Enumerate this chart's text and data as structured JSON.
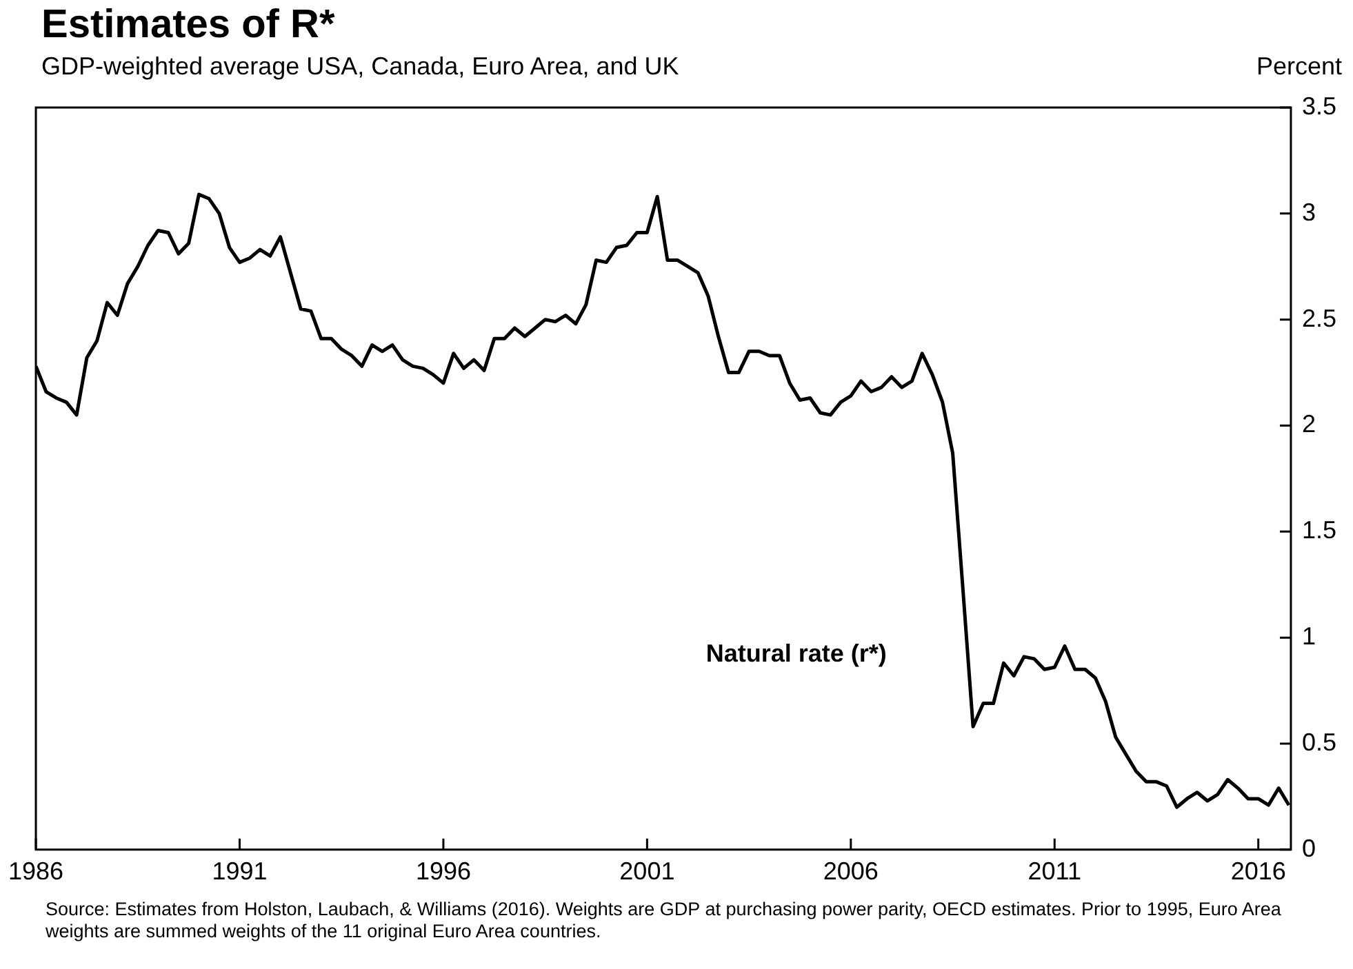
{
  "chart_data": {
    "type": "line",
    "title": "Estimates of R*",
    "subtitle": "GDP-weighted average USA, Canada, Euro Area, and UK",
    "ylabel": "Percent",
    "x": [
      1986,
      1986.25,
      1986.5,
      1986.75,
      1987,
      1987.25,
      1987.5,
      1987.75,
      1988,
      1988.25,
      1988.5,
      1988.75,
      1989,
      1989.25,
      1989.5,
      1989.75,
      1990,
      1990.25,
      1990.5,
      1990.75,
      1991,
      1991.25,
      1991.5,
      1991.75,
      1992,
      1992.25,
      1992.5,
      1992.75,
      1993,
      1993.25,
      1993.5,
      1993.75,
      1994,
      1994.25,
      1994.5,
      1994.75,
      1995,
      1995.25,
      1995.5,
      1995.75,
      1996,
      1996.25,
      1996.5,
      1996.75,
      1997,
      1997.25,
      1997.5,
      1997.75,
      1998,
      1998.25,
      1998.5,
      1998.75,
      1999,
      1999.25,
      1999.5,
      1999.75,
      2000,
      2000.25,
      2000.5,
      2000.75,
      2001,
      2001.25,
      2001.5,
      2001.75,
      2002,
      2002.25,
      2002.5,
      2002.75,
      2003,
      2003.25,
      2003.5,
      2003.75,
      2004,
      2004.25,
      2004.5,
      2004.75,
      2005,
      2005.25,
      2005.5,
      2005.75,
      2006,
      2006.25,
      2006.5,
      2006.75,
      2007,
      2007.25,
      2007.5,
      2007.75,
      2008,
      2008.25,
      2008.5,
      2008.75,
      2009,
      2009.25,
      2009.5,
      2009.75,
      2010,
      2010.25,
      2010.5,
      2010.75,
      2011,
      2011.25,
      2011.5,
      2011.75,
      2012,
      2012.25,
      2012.5,
      2012.75,
      2013,
      2013.25,
      2013.5,
      2013.75,
      2014,
      2014.25,
      2014.5,
      2014.75,
      2015,
      2015.25,
      2015.5,
      2015.75,
      2016,
      2016.25,
      2016.5,
      2016.75
    ],
    "series": [
      {
        "name": "Natural rate (r*)",
        "color": "#000000",
        "values": [
          2.28,
          2.16,
          2.13,
          2.11,
          2.05,
          2.32,
          2.4,
          2.58,
          2.52,
          2.67,
          2.75,
          2.85,
          2.92,
          2.91,
          2.81,
          2.86,
          3.09,
          3.07,
          3.0,
          2.84,
          2.77,
          2.79,
          2.83,
          2.8,
          2.89,
          2.72,
          2.55,
          2.54,
          2.41,
          2.41,
          2.36,
          2.33,
          2.28,
          2.38,
          2.35,
          2.38,
          2.31,
          2.28,
          2.27,
          2.24,
          2.2,
          2.34,
          2.27,
          2.31,
          2.26,
          2.41,
          2.41,
          2.46,
          2.42,
          2.46,
          2.5,
          2.49,
          2.52,
          2.48,
          2.57,
          2.78,
          2.77,
          2.84,
          2.85,
          2.91,
          2.91,
          3.08,
          2.78,
          2.78,
          2.75,
          2.72,
          2.61,
          2.42,
          2.25,
          2.25,
          2.35,
          2.35,
          2.33,
          2.33,
          2.2,
          2.12,
          2.13,
          2.06,
          2.05,
          2.11,
          2.14,
          2.21,
          2.16,
          2.18,
          2.23,
          2.18,
          2.21,
          2.34,
          2.24,
          2.11,
          1.87,
          1.23,
          0.58,
          0.69,
          0.69,
          0.88,
          0.82,
          0.91,
          0.9,
          0.85,
          0.86,
          0.96,
          0.85,
          0.85,
          0.81,
          0.7,
          0.53,
          0.45,
          0.37,
          0.32,
          0.32,
          0.3,
          0.2,
          0.24,
          0.27,
          0.23,
          0.26,
          0.33,
          0.29,
          0.24,
          0.24,
          0.21,
          0.29,
          0.21
        ]
      }
    ],
    "xlim": [
      1986,
      2016.8
    ],
    "xticks": [
      1986,
      1991,
      1996,
      2001,
      2006,
      2011,
      2016
    ],
    "ylim": [
      0,
      3.5
    ],
    "yticks": [
      0,
      0.5,
      1,
      1.5,
      2,
      2.5,
      3,
      3.5
    ],
    "marker": "none",
    "annotations": [
      "Source: Estimates from Holston, Laubach, & Williams (2016). Weights are GDP at purchasing power parity, OECD estimates. Prior to 1995, Euro Area weights are summed weights of the 11 original Euro Area countries."
    ]
  }
}
